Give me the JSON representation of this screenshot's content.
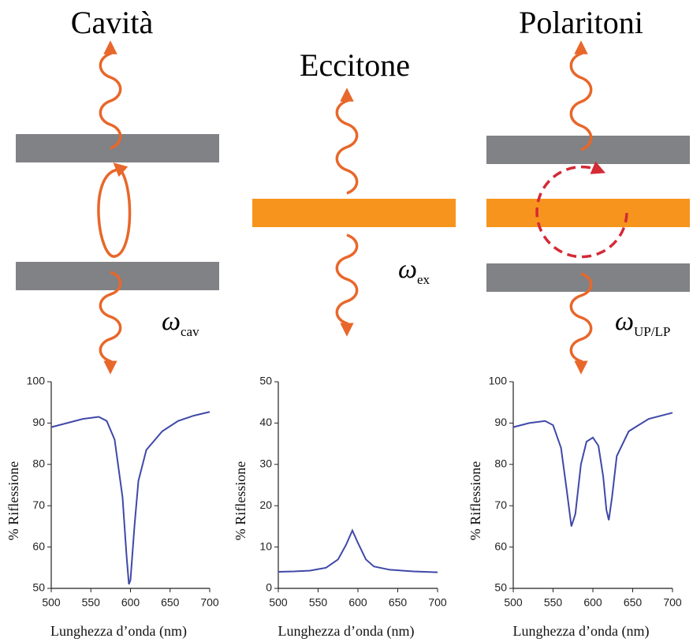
{
  "diagrams": [
    {
      "title": "Cavità",
      "symbol": "ω",
      "subscript": "cav"
    },
    {
      "title": "Eccitone",
      "symbol": "ω",
      "subscript": "ex"
    },
    {
      "title": "Polaritoni",
      "symbol": "ω",
      "subscript": "UP/LP"
    }
  ],
  "chart_data": [
    {
      "type": "line",
      "xlabel": "Lunghezza d’onda (nm)",
      "ylabel": "% Riflessione",
      "color": "#3f48a8",
      "x": [
        500,
        520,
        540,
        560,
        570,
        580,
        590,
        595,
        598,
        600,
        605,
        610,
        620,
        640,
        660,
        680,
        700
      ],
      "values": [
        89,
        90,
        91,
        91.5,
        90.5,
        86,
        72,
        58,
        51,
        52,
        65,
        76,
        83.5,
        88,
        90.5,
        91.8,
        92.7
      ],
      "xlim": [
        500,
        700
      ],
      "xticks": [
        500,
        550,
        600,
        650,
        700
      ],
      "ylim": [
        50,
        100
      ],
      "yticks": [
        50,
        60,
        70,
        80,
        90,
        100
      ]
    },
    {
      "type": "line",
      "xlabel": "Lunghezza d’onda (nm)",
      "ylabel": "% Riflessione",
      "color": "#3f48a8",
      "x": [
        500,
        520,
        540,
        560,
        575,
        585,
        593,
        600,
        610,
        620,
        640,
        670,
        700
      ],
      "values": [
        4,
        4.1,
        4.3,
        5,
        7,
        10.5,
        14,
        11,
        7,
        5.3,
        4.5,
        4.1,
        3.9
      ],
      "xlim": [
        500,
        700
      ],
      "xticks": [
        500,
        550,
        600,
        650,
        700
      ],
      "ylim": [
        0,
        50
      ],
      "yticks": [
        0,
        10,
        20,
        30,
        40,
        50
      ]
    },
    {
      "type": "line",
      "xlabel": "Lunghezza d’onda (nm)",
      "ylabel": "% Riflessione",
      "color": "#3f48a8",
      "x": [
        500,
        520,
        540,
        550,
        560,
        567,
        573,
        578,
        585,
        592,
        600,
        607,
        613,
        617,
        620,
        624,
        630,
        645,
        670,
        700
      ],
      "values": [
        89,
        90,
        90.5,
        89.5,
        84,
        74,
        65,
        68,
        80,
        85.5,
        86.5,
        84.5,
        77,
        69,
        66.5,
        72,
        82,
        88,
        91,
        92.5
      ],
      "xlim": [
        500,
        700
      ],
      "xticks": [
        500,
        550,
        600,
        650,
        700
      ],
      "ylim": [
        50,
        100
      ],
      "yticks": [
        50,
        60,
        70,
        80,
        90,
        100
      ]
    }
  ]
}
